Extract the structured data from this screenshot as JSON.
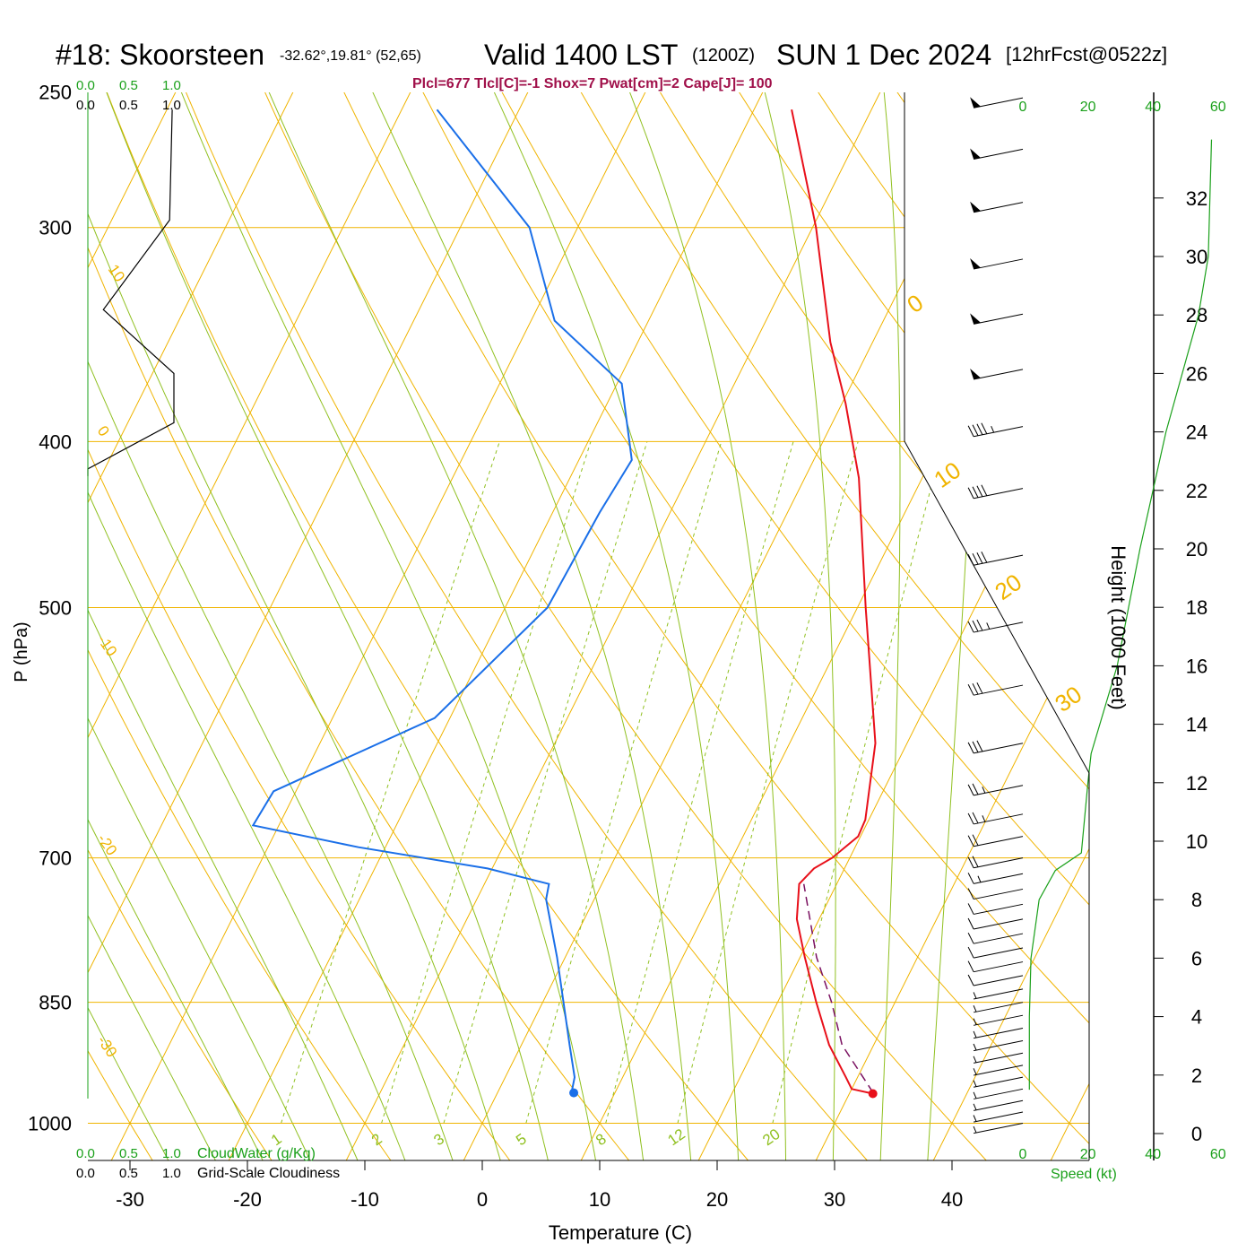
{
  "header": {
    "site": "#18: Skoorsteen",
    "coords": "-32.62°,19.81° (52,65)",
    "valid": "Valid 1400 LST",
    "utc": "(1200Z)",
    "date": "SUN 1 Dec 2024",
    "forecast": "[12hrFcst@0522z]",
    "indices": "Plcl=677 Tlcl[C]=-1 Shox=7 Pwat[cm]=2 Cape[J]= 100"
  },
  "colors": {
    "temperature": "#e8101a",
    "dewpoint": "#1a6fe8",
    "parcel": "#7a1060",
    "isotherm": "#f0b400",
    "mixing_ratio": "#90c020",
    "green_label": "#1aa01a",
    "index_text": "#a0104a"
  },
  "chart_data": {
    "type": "skew-t",
    "xlabel": "Temperature (C)",
    "ylabel": "P (hPa)",
    "x_ticks": [
      "-30",
      "-20",
      "-10",
      "0",
      "10",
      "20",
      "30",
      "40"
    ],
    "y_ticks": [
      "250",
      "300",
      "400",
      "500",
      "700",
      "850",
      "1000"
    ],
    "isotherm_labels": [
      "10",
      "0",
      "-10",
      "-20",
      "-30",
      "0",
      "10",
      "20",
      "30"
    ],
    "mixing_ratio_labels": [
      "1",
      "2",
      "3",
      "5",
      "8",
      "12",
      "20"
    ],
    "temperature_profile": [
      {
        "p": 961,
        "t": 32.0
      },
      {
        "p": 955,
        "t": 30.0
      },
      {
        "p": 940,
        "t": 29.0
      },
      {
        "p": 900,
        "t": 26.2
      },
      {
        "p": 850,
        "t": 23.3
      },
      {
        "p": 800,
        "t": 20.4
      },
      {
        "p": 760,
        "t": 18.1
      },
      {
        "p": 725,
        "t": 16.8
      },
      {
        "p": 710,
        "t": 17.4
      },
      {
        "p": 700,
        "t": 18.5
      },
      {
        "p": 680,
        "t": 19.8
      },
      {
        "p": 665,
        "t": 19.7
      },
      {
        "p": 600,
        "t": 17.3
      },
      {
        "p": 500,
        "t": 10.7
      },
      {
        "p": 420,
        "t": 4.6
      },
      {
        "p": 380,
        "t": 0.3
      },
      {
        "p": 350,
        "t": -3.6
      },
      {
        "p": 300,
        "t": -9.7
      },
      {
        "p": 256,
        "t": -16.8
      }
    ],
    "dewpoint_profile": [
      {
        "p": 960,
        "t": 6.3
      },
      {
        "p": 940,
        "t": 5.9
      },
      {
        "p": 900,
        "t": 4.1
      },
      {
        "p": 800,
        "t": -0.7
      },
      {
        "p": 740,
        "t": -4.1
      },
      {
        "p": 725,
        "t": -4.5
      },
      {
        "p": 710,
        "t": -10.4
      },
      {
        "p": 690,
        "t": -22.3
      },
      {
        "p": 670,
        "t": -32.2
      },
      {
        "p": 640,
        "t": -31.9
      },
      {
        "p": 580,
        "t": -21.3
      },
      {
        "p": 500,
        "t": -16.4
      },
      {
        "p": 440,
        "t": -16.0
      },
      {
        "p": 410,
        "t": -15.5
      },
      {
        "p": 370,
        "t": -19.6
      },
      {
        "p": 340,
        "t": -28.0
      },
      {
        "p": 300,
        "t": -34.1
      },
      {
        "p": 256,
        "t": -47.0
      }
    ],
    "surface_temperature": 32,
    "surface_dewpoint": 6.5,
    "parcel_path": [
      {
        "p": 960,
        "t": 32.0
      },
      {
        "p": 900,
        "t": 27.3
      },
      {
        "p": 850,
        "t": 24.6
      },
      {
        "p": 800,
        "t": 21.4
      },
      {
        "p": 725,
        "t": 17.2
      }
    ],
    "left_axis_label_top_green": [
      "0.0",
      "0.5",
      "1.0"
    ],
    "left_axis_label_top_black": [
      "0.0",
      "0.5",
      "1.0"
    ],
    "cloud_water_label": "CloudWater (g/Kg)",
    "cloudiness_label": "Grid-Scale Cloudiness",
    "cloudiness_profile": [
      {
        "p": 256,
        "v": 0.98
      },
      {
        "p": 297,
        "v": 0.95
      },
      {
        "p": 335,
        "v": 0.18
      },
      {
        "p": 365,
        "v": 1.0
      },
      {
        "p": 390,
        "v": 1.0
      },
      {
        "p": 415,
        "v": 0.0
      }
    ],
    "height_axis_label": "Height (1000 Feet)",
    "height_ticks": [
      "0",
      "2",
      "4",
      "6",
      "8",
      "10",
      "12",
      "14",
      "16",
      "18",
      "20",
      "22",
      "24",
      "26",
      "28",
      "30",
      "32"
    ],
    "speed_axis_label": "Speed (kt)",
    "speed_ticks": [
      "0",
      "20",
      "40",
      "60"
    ],
    "wind_speed_profile": [
      {
        "h": 1.5,
        "s": 2
      },
      {
        "h": 4,
        "s": 2
      },
      {
        "h": 6,
        "s": 2.5
      },
      {
        "h": 8,
        "s": 5
      },
      {
        "h": 9,
        "s": 10
      },
      {
        "h": 9.6,
        "s": 18
      },
      {
        "h": 12,
        "s": 20
      },
      {
        "h": 13,
        "s": 21
      },
      {
        "h": 16,
        "s": 29
      },
      {
        "h": 20,
        "s": 36
      },
      {
        "h": 24,
        "s": 44
      },
      {
        "h": 28,
        "s": 54
      },
      {
        "h": 30,
        "s": 57
      },
      {
        "h": 34,
        "s": 58
      }
    ],
    "wind_barbs": [
      {
        "p": 252,
        "kt": 50
      },
      {
        "p": 270,
        "kt": 50
      },
      {
        "p": 290,
        "kt": 50
      },
      {
        "p": 313,
        "kt": 50
      },
      {
        "p": 337,
        "kt": 50
      },
      {
        "p": 363,
        "kt": 50
      },
      {
        "p": 392,
        "kt": 45
      },
      {
        "p": 426,
        "kt": 40
      },
      {
        "p": 466,
        "kt": 40
      },
      {
        "p": 510,
        "kt": 35
      },
      {
        "p": 555,
        "kt": 30
      },
      {
        "p": 600,
        "kt": 30
      },
      {
        "p": 635,
        "kt": 25
      },
      {
        "p": 660,
        "kt": 25
      },
      {
        "p": 680,
        "kt": 20
      },
      {
        "p": 700,
        "kt": 20
      },
      {
        "p": 715,
        "kt": 15
      },
      {
        "p": 730,
        "kt": 10
      },
      {
        "p": 745,
        "kt": 10
      },
      {
        "p": 760,
        "kt": 10
      },
      {
        "p": 775,
        "kt": 10
      },
      {
        "p": 790,
        "kt": 10
      },
      {
        "p": 805,
        "kt": 10
      },
      {
        "p": 820,
        "kt": 10
      },
      {
        "p": 835,
        "kt": 5
      },
      {
        "p": 850,
        "kt": 5
      },
      {
        "p": 865,
        "kt": 5
      },
      {
        "p": 880,
        "kt": 5
      },
      {
        "p": 895,
        "kt": 5
      },
      {
        "p": 910,
        "kt": 5
      },
      {
        "p": 925,
        "kt": 5
      },
      {
        "p": 940,
        "kt": 5
      },
      {
        "p": 955,
        "kt": 5
      },
      {
        "p": 970,
        "kt": 5
      },
      {
        "p": 985,
        "kt": 5
      },
      {
        "p": 1000,
        "kt": 5
      }
    ]
  }
}
